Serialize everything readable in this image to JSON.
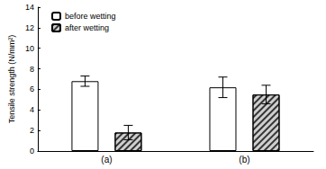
{
  "chart_data": {
    "type": "bar",
    "y_label": "Tensile strength (N/mm²)",
    "categories": [
      "(a)",
      "(b)"
    ],
    "series": [
      {
        "name": "before wetting",
        "color": "#ffffff",
        "values": [
          6.8,
          6.2
        ],
        "errors": [
          0.5,
          1.0
        ]
      },
      {
        "name": "after wetting",
        "color": "#cfcfcf",
        "values": [
          1.8,
          5.5
        ],
        "errors": [
          0.7,
          0.9
        ]
      }
    ],
    "ylim": [
      0,
      14
    ],
    "yticks": [
      0,
      2,
      4,
      6,
      8,
      10,
      12,
      14
    ],
    "grid": false,
    "legend": "upper left"
  }
}
